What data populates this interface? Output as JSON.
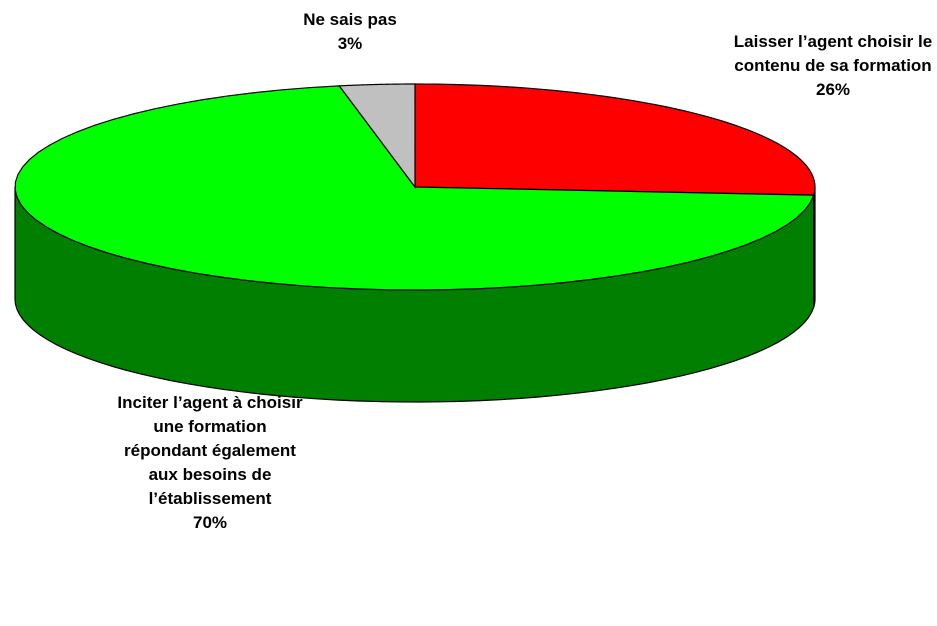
{
  "chart_data": {
    "type": "pie",
    "categories": [
      "Laisser l’agent choisir le contenu de sa formation",
      "Inciter l’agent à choisir une formation répondant également aux besoins de l’établissement",
      "Ne sais pas"
    ],
    "values": [
      26,
      70,
      3
    ],
    "value_labels": [
      "26%",
      "70%",
      "3%"
    ],
    "colors": [
      "#ff0000",
      "#00ff00",
      "#c0c0c0"
    ]
  }
}
